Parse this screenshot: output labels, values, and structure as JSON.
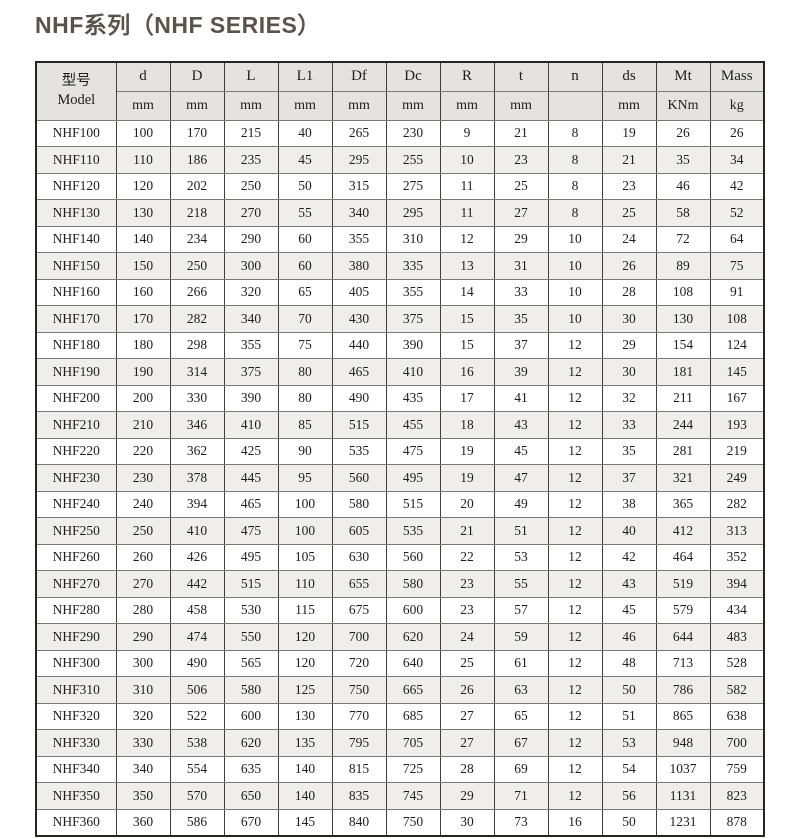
{
  "title": "NHF系列（NHF SERIES）",
  "table": {
    "header": {
      "model_label_cn": "型号",
      "model_label_en": "Model",
      "columns": [
        {
          "label": "d",
          "unit": "mm"
        },
        {
          "label": "D",
          "unit": "mm"
        },
        {
          "label": "L",
          "unit": "mm"
        },
        {
          "label": "L1",
          "unit": "mm"
        },
        {
          "label": "Df",
          "unit": "mm"
        },
        {
          "label": "Dc",
          "unit": "mm"
        },
        {
          "label": "R",
          "unit": "mm"
        },
        {
          "label": "t",
          "unit": "mm"
        },
        {
          "label": "n",
          "unit": ""
        },
        {
          "label": "ds",
          "unit": "mm"
        },
        {
          "label": "Mt",
          "unit": "KNm"
        },
        {
          "label": "Mass",
          "unit": "kg"
        }
      ]
    },
    "rows": [
      {
        "model": "NHF100",
        "values": [
          100,
          170,
          215,
          40,
          265,
          230,
          9,
          21,
          8,
          19,
          26,
          26
        ]
      },
      {
        "model": "NHF110",
        "values": [
          110,
          186,
          235,
          45,
          295,
          255,
          10,
          23,
          8,
          21,
          35,
          34
        ]
      },
      {
        "model": "NHF120",
        "values": [
          120,
          202,
          250,
          50,
          315,
          275,
          11,
          25,
          8,
          23,
          46,
          42
        ]
      },
      {
        "model": "NHF130",
        "values": [
          130,
          218,
          270,
          55,
          340,
          295,
          11,
          27,
          8,
          25,
          58,
          52
        ]
      },
      {
        "model": "NHF140",
        "values": [
          140,
          234,
          290,
          60,
          355,
          310,
          12,
          29,
          10,
          24,
          72,
          64
        ]
      },
      {
        "model": "NHF150",
        "values": [
          150,
          250,
          300,
          60,
          380,
          335,
          13,
          31,
          10,
          26,
          89,
          75
        ]
      },
      {
        "model": "NHF160",
        "values": [
          160,
          266,
          320,
          65,
          405,
          355,
          14,
          33,
          10,
          28,
          108,
          91
        ]
      },
      {
        "model": "NHF170",
        "values": [
          170,
          282,
          340,
          70,
          430,
          375,
          15,
          35,
          10,
          30,
          130,
          108
        ]
      },
      {
        "model": "NHF180",
        "values": [
          180,
          298,
          355,
          75,
          440,
          390,
          15,
          37,
          12,
          29,
          154,
          124
        ]
      },
      {
        "model": "NHF190",
        "values": [
          190,
          314,
          375,
          80,
          465,
          410,
          16,
          39,
          12,
          30,
          181,
          145
        ]
      },
      {
        "model": "NHF200",
        "values": [
          200,
          330,
          390,
          80,
          490,
          435,
          17,
          41,
          12,
          32,
          211,
          167
        ]
      },
      {
        "model": "NHF210",
        "values": [
          210,
          346,
          410,
          85,
          515,
          455,
          18,
          43,
          12,
          33,
          244,
          193
        ]
      },
      {
        "model": "NHF220",
        "values": [
          220,
          362,
          425,
          90,
          535,
          475,
          19,
          45,
          12,
          35,
          281,
          219
        ]
      },
      {
        "model": "NHF230",
        "values": [
          230,
          378,
          445,
          95,
          560,
          495,
          19,
          47,
          12,
          37,
          321,
          249
        ]
      },
      {
        "model": "NHF240",
        "values": [
          240,
          394,
          465,
          100,
          580,
          515,
          20,
          49,
          12,
          38,
          365,
          282
        ]
      },
      {
        "model": "NHF250",
        "values": [
          250,
          410,
          475,
          100,
          605,
          535,
          21,
          51,
          12,
          40,
          412,
          313
        ]
      },
      {
        "model": "NHF260",
        "values": [
          260,
          426,
          495,
          105,
          630,
          560,
          22,
          53,
          12,
          42,
          464,
          352
        ]
      },
      {
        "model": "NHF270",
        "values": [
          270,
          442,
          515,
          110,
          655,
          580,
          23,
          55,
          12,
          43,
          519,
          394
        ]
      },
      {
        "model": "NHF280",
        "values": [
          280,
          458,
          530,
          115,
          675,
          600,
          23,
          57,
          12,
          45,
          579,
          434
        ]
      },
      {
        "model": "NHF290",
        "values": [
          290,
          474,
          550,
          120,
          700,
          620,
          24,
          59,
          12,
          46,
          644,
          483
        ]
      },
      {
        "model": "NHF300",
        "values": [
          300,
          490,
          565,
          120,
          720,
          640,
          25,
          61,
          12,
          48,
          713,
          528
        ]
      },
      {
        "model": "NHF310",
        "values": [
          310,
          506,
          580,
          125,
          750,
          665,
          26,
          63,
          12,
          50,
          786,
          582
        ]
      },
      {
        "model": "NHF320",
        "values": [
          320,
          522,
          600,
          130,
          770,
          685,
          27,
          65,
          12,
          51,
          865,
          638
        ]
      },
      {
        "model": "NHF330",
        "values": [
          330,
          538,
          620,
          135,
          795,
          705,
          27,
          67,
          12,
          53,
          948,
          700
        ]
      },
      {
        "model": "NHF340",
        "values": [
          340,
          554,
          635,
          140,
          815,
          725,
          28,
          69,
          12,
          54,
          1037,
          759
        ]
      },
      {
        "model": "NHF350",
        "values": [
          350,
          570,
          650,
          140,
          835,
          745,
          29,
          71,
          12,
          56,
          1131,
          823
        ]
      },
      {
        "model": "NHF360",
        "values": [
          360,
          586,
          670,
          145,
          840,
          750,
          30,
          73,
          16,
          50,
          1231,
          878
        ]
      }
    ]
  },
  "colors": {
    "title_text": "#5b5349",
    "header_background": "#e4e3e0",
    "alt_row_background": "#efeeeb",
    "outer_border": "#25241f",
    "body_text": "#1f1e1c"
  }
}
